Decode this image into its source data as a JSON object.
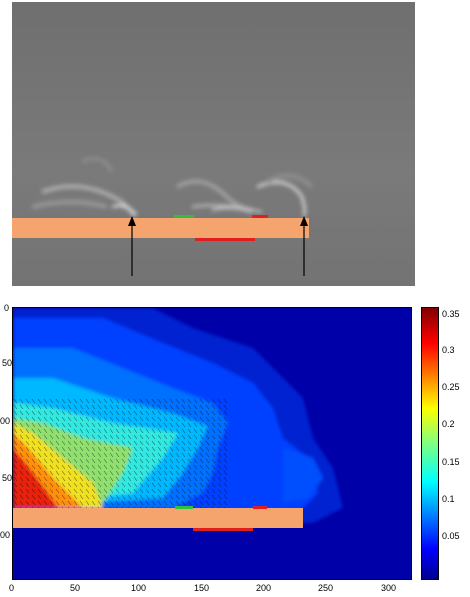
{
  "top_panel": {
    "background_color": "#777777",
    "plate_color": "#f5a46e",
    "green_strip": "#30c040",
    "red_strip": "#e02020",
    "arrow_color": "#000000"
  },
  "bottom_panel": {
    "x_ticks": [
      "0",
      "50",
      "100",
      "150",
      "200",
      "250",
      "300"
    ],
    "y_ticks": [
      "0",
      "50",
      "00",
      "50",
      "00"
    ],
    "colorbar": {
      "ticks": [
        "0.35",
        "0.3",
        "0.25",
        "0.2",
        "0.15",
        "0.1",
        "0.05"
      ],
      "min": 0,
      "max": 0.37,
      "colormap": "jet"
    },
    "plate_color": "#f5a46e",
    "background_color": "#0000b0"
  }
}
